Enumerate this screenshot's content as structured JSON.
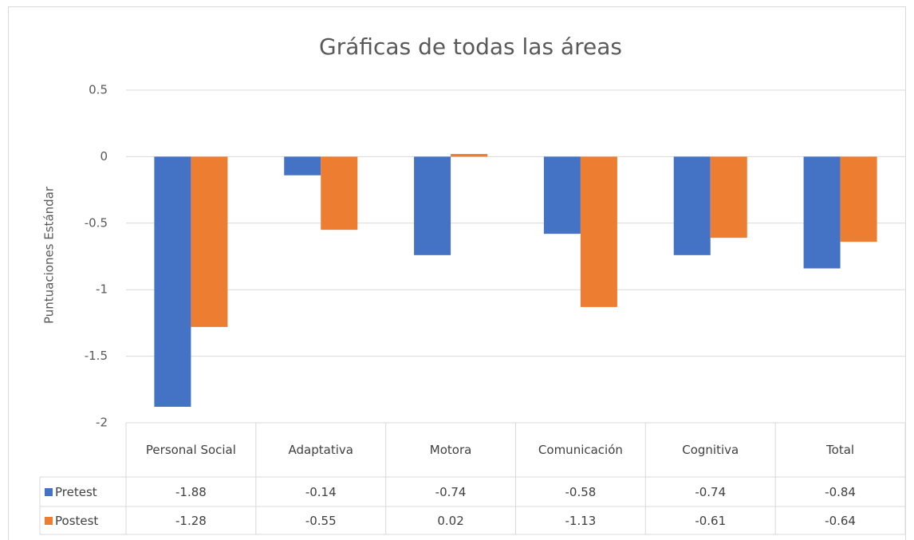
{
  "chart_data": {
    "type": "bar",
    "title": "Gráficas de todas las áreas",
    "y_axis_label": "Puntuaciones  Estándar",
    "categories": [
      "Personal Social",
      "Adaptativa",
      "Motora",
      "Comunicación",
      "Cognitiva",
      "Total"
    ],
    "series": [
      {
        "name": "Pretest",
        "color": "#4472c4",
        "values": [
          -1.88,
          -0.14,
          -0.74,
          -0.58,
          -0.74,
          -0.84
        ]
      },
      {
        "name": "Postest",
        "color": "#ed7d31",
        "values": [
          -1.28,
          -0.55,
          0.02,
          -1.13,
          -0.61,
          -0.64
        ]
      }
    ],
    "ylim": [
      -2,
      0.5
    ],
    "yticks": [
      0.5,
      0,
      -0.5,
      -1,
      -1.5,
      -2
    ],
    "grid": true,
    "data_table": true
  }
}
